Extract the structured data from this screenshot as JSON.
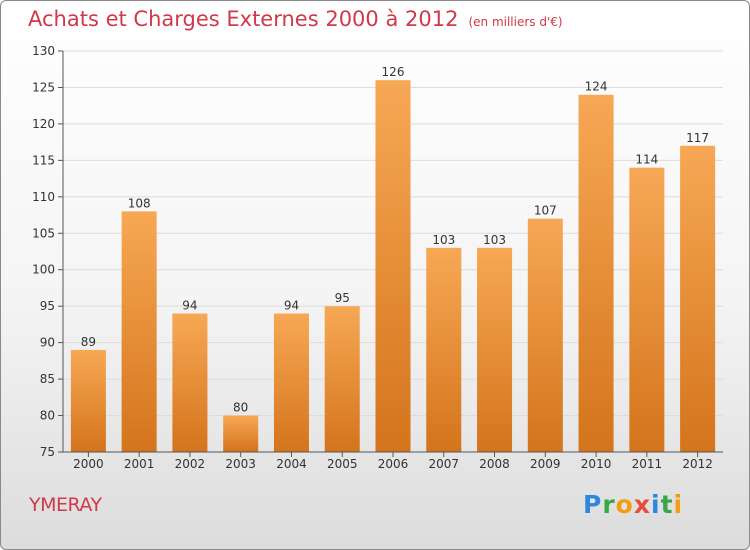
{
  "page": {
    "title": "Achats et Charges Externes 2000 à 2012",
    "subtitle": "(en milliers d'€)",
    "city": "YMERAY",
    "logo": {
      "letters": [
        {
          "char": "P",
          "color": "#2e86de"
        },
        {
          "char": "r",
          "color": "#3aa64a"
        },
        {
          "char": "o",
          "color": "#f39c12"
        },
        {
          "char": "x",
          "color": "#e74c3c"
        },
        {
          "char": "i",
          "color": "#2e86de"
        },
        {
          "char": "t",
          "color": "#3aa64a"
        },
        {
          "char": "i",
          "color": "#f39c12"
        }
      ]
    }
  },
  "chart_data": {
    "type": "bar",
    "title": "Achats et Charges Externes 2000 à 2012",
    "subtitle": "(en milliers d'€)",
    "categories": [
      "2000",
      "2001",
      "2002",
      "2003",
      "2004",
      "2005",
      "2006",
      "2007",
      "2008",
      "2009",
      "2010",
      "2011",
      "2012"
    ],
    "values": [
      89,
      108,
      94,
      80,
      94,
      95,
      126,
      103,
      103,
      107,
      124,
      114,
      117
    ],
    "ylim": [
      75,
      130
    ],
    "yticks": [
      75,
      80,
      85,
      90,
      95,
      100,
      105,
      110,
      115,
      120,
      125,
      130
    ],
    "grid": true,
    "legend": "none",
    "bar_color_top": "#f7a855",
    "bar_color_bottom": "#d4741c"
  }
}
